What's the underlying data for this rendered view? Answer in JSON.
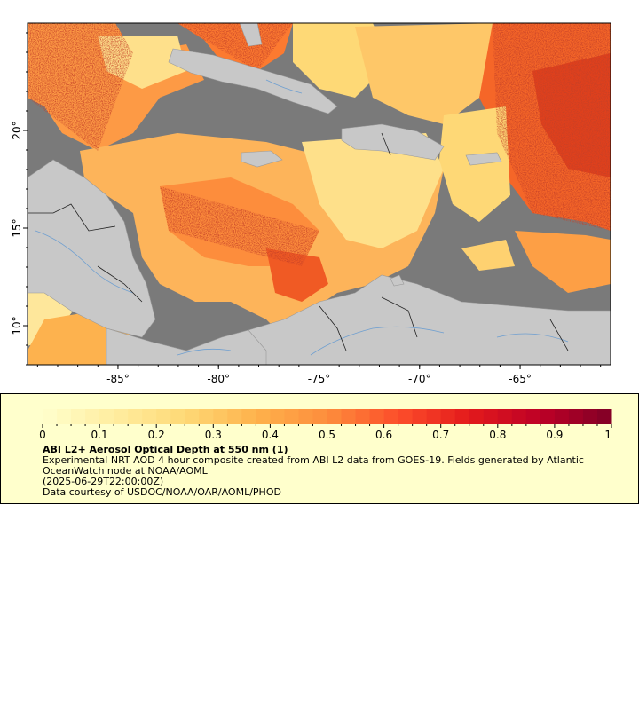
{
  "map": {
    "x_ticks": [
      "-85°",
      "-80°",
      "-75°",
      "-70°",
      "-65°"
    ],
    "y_ticks": [
      "20°",
      "15°",
      "10°"
    ],
    "lon_range": [
      -89.5,
      -60.5
    ],
    "lat_range": [
      8,
      25.5
    ],
    "colors": {
      "no_data": "#7a7a7a",
      "land": "#c8c8c8",
      "border": "#222222",
      "river": "#6f9fd0"
    }
  },
  "legend": {
    "title": "ABI L2+ Aerosol Optical Depth at 550 nm (1)",
    "line1": "Experimental NRT AOD 4 hour composite created from ABI L2 data from GOES-19. Fields generated by Atlantic OceanWatch node at NOAA/AOML",
    "line2": "(2025-06-29T22:00:00Z)",
    "line3": "Data courtesy of USDOC/NOAA/OAR/AOML/PHOD",
    "colorbar": {
      "min": 0,
      "max": 1,
      "tick_labels": [
        "0",
        "0.1",
        "0.2",
        "0.3",
        "0.4",
        "0.5",
        "0.6",
        "0.7",
        "0.8",
        "0.9",
        "1"
      ],
      "colors": [
        "#ffffcc",
        "#ffeda0",
        "#fed976",
        "#feb24c",
        "#fd8d3c",
        "#fc4e2a",
        "#e31a1c",
        "#bd0026",
        "#800026"
      ]
    }
  }
}
